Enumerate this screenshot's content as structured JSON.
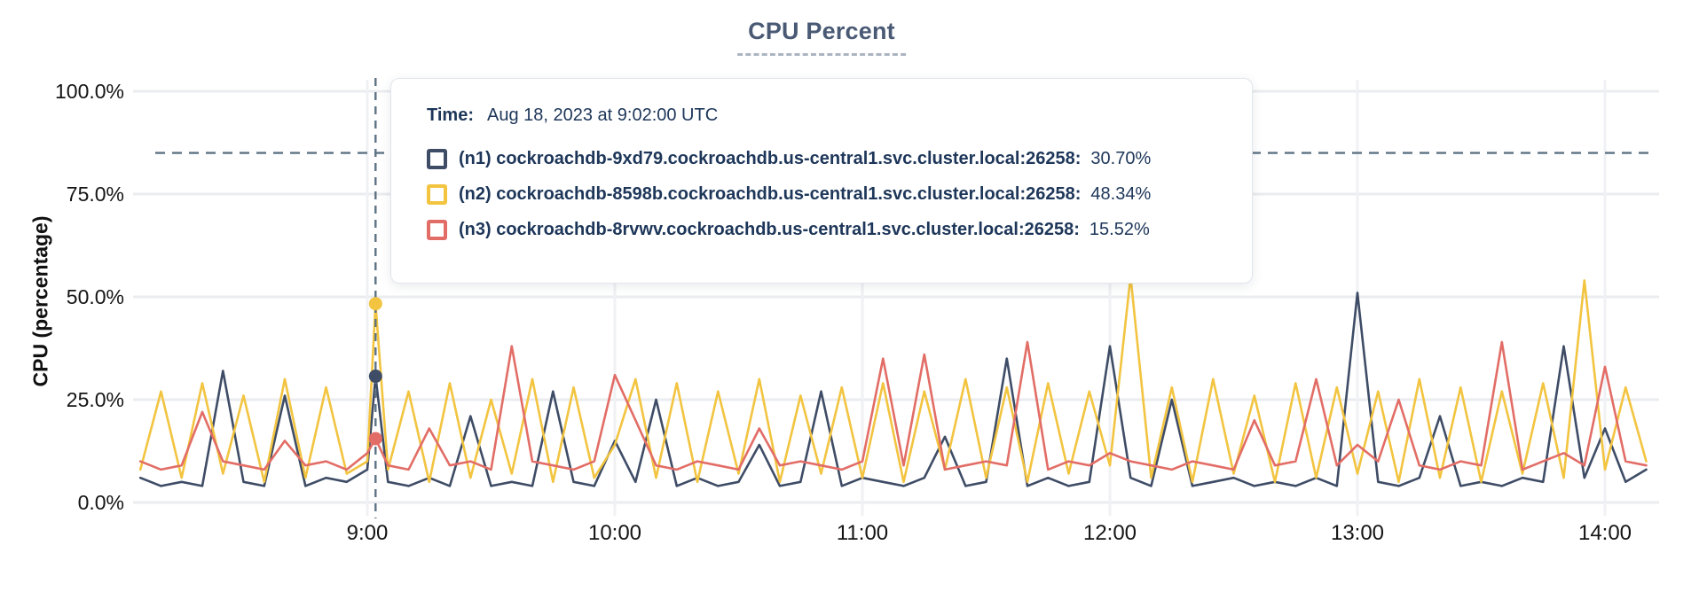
{
  "title": "CPU Percent",
  "y_axis_title": "CPU (percentage)",
  "tooltip": {
    "time_label": "Time:",
    "time_value": "Aug 18, 2023 at 9:02:00 UTC",
    "rows": [
      {
        "name": "n1",
        "label": "(n1) cockroachdb-9xd79.cockroachdb.us-central1.svc.cluster.local:26258:",
        "value": "30.70%"
      },
      {
        "name": "n2",
        "label": "(n2) cockroachdb-8598b.cockroachdb.us-central1.svc.cluster.local:26258:",
        "value": "48.34%"
      },
      {
        "name": "n3",
        "label": "(n3) cockroachdb-8rvwv.cockroachdb.us-central1.svc.cluster.local:26258:",
        "value": "15.52%"
      }
    ]
  },
  "chart_data": {
    "type": "line",
    "title": "CPU Percent",
    "ylabel": "CPU (percentage)",
    "ylim": [
      0,
      100
    ],
    "grid": true,
    "legend_position": "hover-tooltip",
    "y_ticks": [
      {
        "label": "100.0%",
        "value": 100
      },
      {
        "label": "75.0%",
        "value": 75
      },
      {
        "label": "50.0%",
        "value": 50
      },
      {
        "label": "25.0%",
        "value": 25
      },
      {
        "label": "0.0%",
        "value": 0
      }
    ],
    "x_ticks": [
      {
        "label": "9:00",
        "minutes": 540
      },
      {
        "label": "10:00",
        "minutes": 600
      },
      {
        "label": "11:00",
        "minutes": 660
      },
      {
        "label": "12:00",
        "minutes": 720
      },
      {
        "label": "13:00",
        "minutes": 780
      },
      {
        "label": "14:00",
        "minutes": 840
      }
    ],
    "threshold_line": {
      "value": 85,
      "style": "dashed",
      "color": "#5d7283"
    },
    "cursor": {
      "minutes": 542,
      "time": "Aug 18, 2023 at 9:02:00 UTC",
      "style": "dashed-vertical"
    },
    "x_minutes": [
      485,
      490,
      495,
      500,
      505,
      510,
      515,
      520,
      525,
      530,
      535,
      540,
      542,
      545,
      550,
      555,
      560,
      565,
      570,
      575,
      580,
      585,
      590,
      595,
      600,
      605,
      610,
      615,
      620,
      625,
      630,
      635,
      640,
      645,
      650,
      655,
      660,
      665,
      670,
      675,
      680,
      685,
      690,
      695,
      700,
      705,
      710,
      715,
      720,
      725,
      730,
      735,
      740,
      745,
      750,
      755,
      760,
      765,
      770,
      775,
      780,
      785,
      790,
      795,
      800,
      805,
      810,
      815,
      820,
      825,
      830,
      835,
      840,
      845,
      850
    ],
    "series": [
      {
        "id": "n1",
        "name": "(n1) cockroachdb-9xd79.cockroachdb.us-central1.svc.cluster.local:26258",
        "color": "#3e4c66",
        "cursor_value": 30.7,
        "values": [
          6,
          4,
          5,
          4,
          32,
          5,
          4,
          26,
          4,
          6,
          5,
          8,
          30.7,
          5,
          4,
          6,
          4,
          21,
          4,
          5,
          4,
          27,
          5,
          4,
          15,
          5,
          25,
          4,
          6,
          4,
          5,
          14,
          4,
          5,
          27,
          4,
          6,
          5,
          4,
          6,
          16,
          4,
          5,
          35,
          4,
          6,
          4,
          5,
          38,
          6,
          4,
          25,
          4,
          5,
          6,
          4,
          5,
          4,
          6,
          4,
          51,
          5,
          4,
          6,
          21,
          4,
          5,
          4,
          6,
          5,
          38,
          6,
          18,
          5,
          8
        ]
      },
      {
        "id": "n2",
        "name": "(n2) cockroachdb-8598b.cockroachdb.us-central1.svc.cluster.local:26258",
        "color": "#f2c440",
        "cursor_value": 48.34,
        "values": [
          8,
          27,
          6,
          29,
          7,
          26,
          5,
          30,
          6,
          28,
          7,
          10,
          48.34,
          8,
          27,
          5,
          29,
          6,
          25,
          7,
          30,
          5,
          28,
          6,
          14,
          30,
          6,
          29,
          5,
          27,
          7,
          30,
          5,
          26,
          7,
          28,
          6,
          29,
          5,
          27,
          8,
          30,
          6,
          28,
          5,
          29,
          7,
          27,
          9,
          55,
          6,
          28,
          5,
          30,
          7,
          26,
          5,
          29,
          6,
          28,
          7,
          27,
          5,
          30,
          6,
          28,
          5,
          27,
          7,
          29,
          6,
          54,
          8,
          28,
          10
        ]
      },
      {
        "id": "n3",
        "name": "(n3) cockroachdb-8rvwv.cockroachdb.us-central1.svc.cluster.local:26258",
        "color": "#e26d66",
        "cursor_value": 15.52,
        "values": [
          10,
          8,
          9,
          22,
          10,
          9,
          8,
          15,
          9,
          10,
          8,
          12,
          15.52,
          9,
          8,
          18,
          9,
          10,
          8,
          38,
          10,
          9,
          8,
          10,
          31,
          20,
          9,
          8,
          10,
          9,
          8,
          18,
          9,
          10,
          9,
          8,
          10,
          35,
          9,
          36,
          8,
          9,
          10,
          9,
          39,
          8,
          10,
          9,
          12,
          10,
          9,
          8,
          10,
          9,
          8,
          20,
          9,
          10,
          30,
          9,
          14,
          10,
          25,
          9,
          8,
          10,
          9,
          39,
          8,
          10,
          12,
          9,
          33,
          10,
          9
        ]
      }
    ]
  }
}
